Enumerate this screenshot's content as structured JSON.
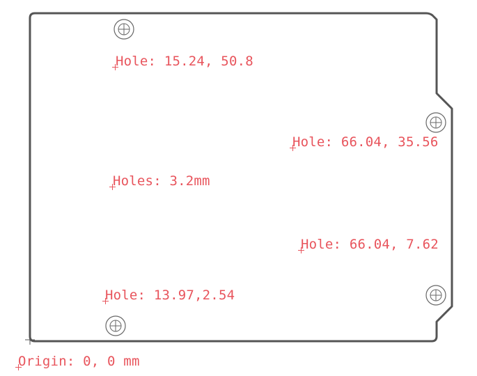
{
  "colors": {
    "outline": "#555555",
    "text": "#e8545c",
    "hole_stroke": "#666666"
  },
  "labels": {
    "hole_top_left": "Hole: 15.24, 50.8",
    "hole_right_upper": "Hole: 66.04, 35.56",
    "holes_diameter": "Holes: 3.2mm",
    "hole_right_lower": "Hole: 66.04, 7.62",
    "hole_bottom_left": "Hole: 13.97,2.54",
    "origin": "Origin: 0, 0 mm"
  },
  "holes_mm": [
    {
      "x": 15.24,
      "y": 50.8
    },
    {
      "x": 66.04,
      "y": 35.56
    },
    {
      "x": 66.04,
      "y": 7.62
    },
    {
      "x": 13.97,
      "y": 2.54
    }
  ],
  "hole_diameter_mm": 3.2
}
